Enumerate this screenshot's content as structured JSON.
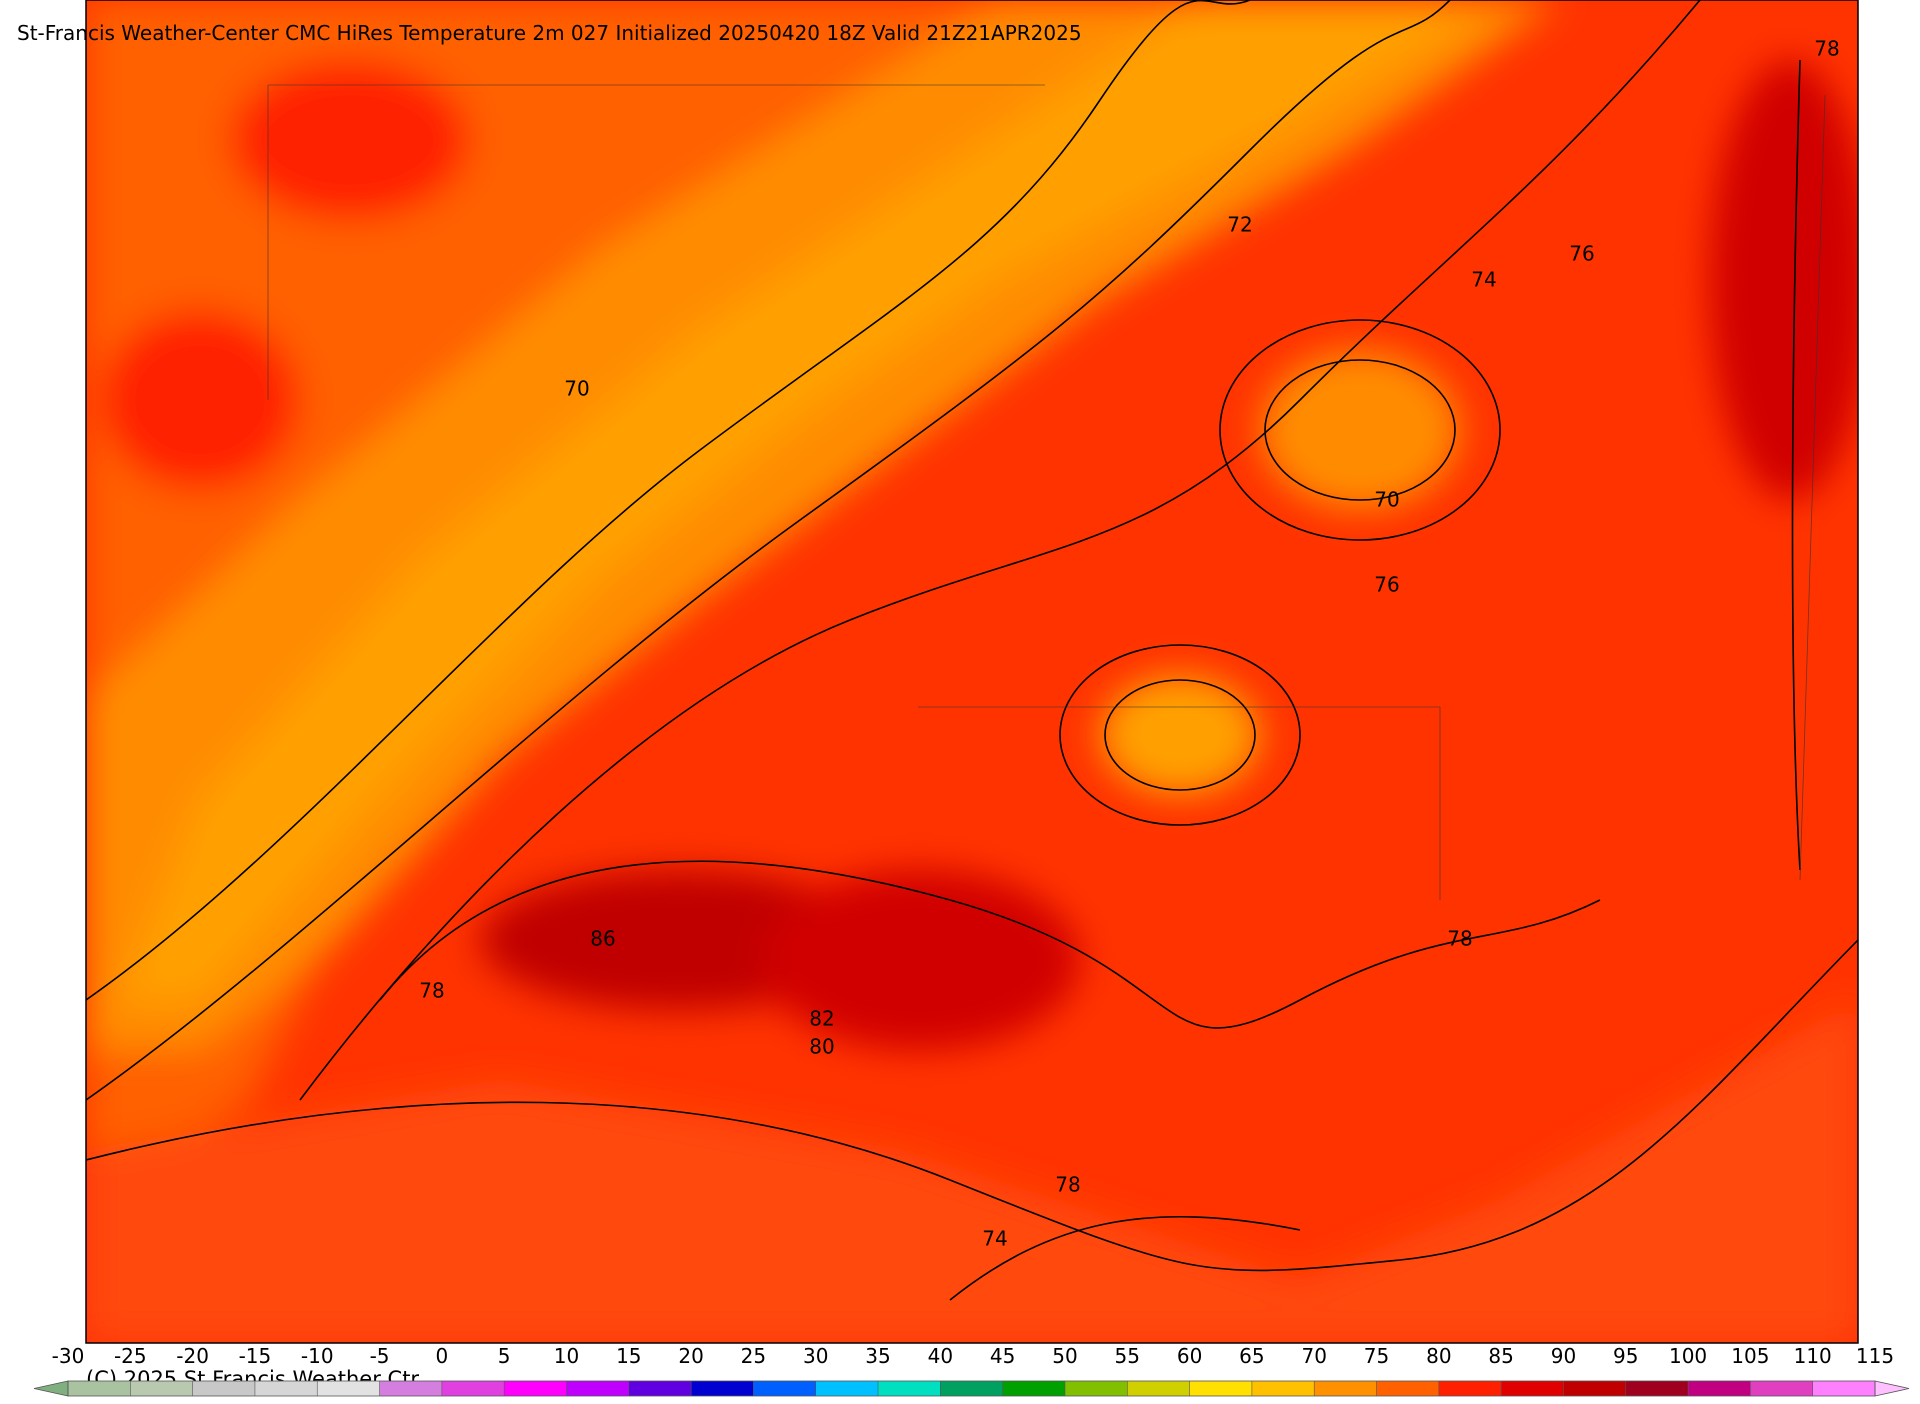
{
  "title": "St-Francis Weather-Center CMC HiRes Temperature 2m  027 Initialized 20250420 18Z Valid 21Z21APR2025",
  "copyright": "(C) 2025 St Francis Weather Ctr",
  "contour_labels": [
    78,
    72,
    76,
    74,
    70,
    70,
    76,
    86,
    78,
    78,
    82,
    80,
    78,
    74
  ],
  "colorbar": {
    "ticks": [
      -30,
      -25,
      -20,
      -15,
      -10,
      -5,
      0,
      5,
      10,
      15,
      20,
      25,
      30,
      35,
      40,
      45,
      50,
      55,
      60,
      65,
      70,
      75,
      80,
      85,
      90,
      95,
      100,
      105,
      110,
      115
    ],
    "colors": [
      "#a9c3a0",
      "#b8c9b0",
      "#c8c8c8",
      "#d6d6d6",
      "#e2e2e2",
      "#d47ee0",
      "#e040e0",
      "#ff00ff",
      "#c000ff",
      "#6000e0",
      "#0000d0",
      "#0060ff",
      "#00c0ff",
      "#00e0c0",
      "#00a060",
      "#00a000",
      "#80c000",
      "#d0d000",
      "#ffe000",
      "#ffc000",
      "#ff9000",
      "#ff6000",
      "#ff2000",
      "#e00000",
      "#c00000",
      "#a00020",
      "#c00080",
      "#e040c0",
      "#ff80ff"
    ],
    "under_color": "#80b080",
    "over_color": "#ffc0ff"
  }
}
